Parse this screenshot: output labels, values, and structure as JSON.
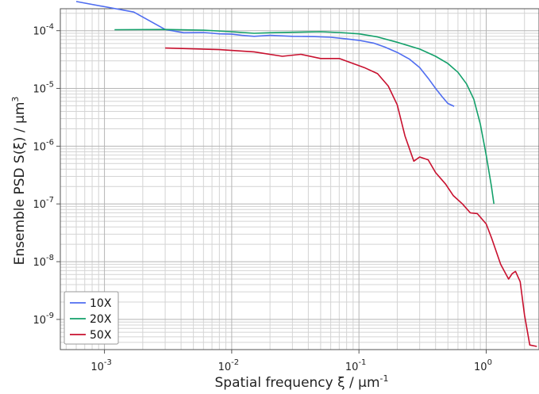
{
  "chart_data": {
    "type": "line",
    "xlabel": "Spatial frequency ξ / μm",
    "xlabel_sup": "-1",
    "ylabel": "Ensemble PSD S(ξ) / μm",
    "ylabel_sup": "3",
    "xscale": "log",
    "yscale": "log",
    "xlim": [
      0.00045,
      2.6
    ],
    "ylim": [
      3e-10,
      0.00024
    ],
    "grid": true,
    "legend_position": "bottom-left",
    "x_ticks": [
      {
        "value": 0.001,
        "base": "10",
        "exp": "-3"
      },
      {
        "value": 0.01,
        "base": "10",
        "exp": "-2"
      },
      {
        "value": 0.1,
        "base": "10",
        "exp": "-1"
      },
      {
        "value": 1,
        "base": "10",
        "exp": "0"
      }
    ],
    "y_ticks": [
      {
        "value": 1e-09,
        "base": "10",
        "exp": "-9"
      },
      {
        "value": 1e-08,
        "base": "10",
        "exp": "-8"
      },
      {
        "value": 1e-07,
        "base": "10",
        "exp": "-7"
      },
      {
        "value": 1e-06,
        "base": "10",
        "exp": "-6"
      },
      {
        "value": 1e-05,
        "base": "10",
        "exp": "-5"
      },
      {
        "value": 0.0001,
        "base": "10",
        "exp": "-4"
      }
    ],
    "series": [
      {
        "name": "10X",
        "color": "#4f6df0",
        "x": [
          0.0006,
          0.0017,
          0.003,
          0.0042,
          0.006,
          0.008,
          0.01,
          0.012,
          0.015,
          0.02,
          0.03,
          0.045,
          0.06,
          0.08,
          0.1,
          0.13,
          0.16,
          0.2,
          0.25,
          0.3,
          0.35,
          0.4,
          0.45,
          0.5,
          0.56
        ],
        "y": [
          0.00032,
          0.00021,
          0.000105,
          9.2e-05,
          9.3e-05,
          8.8e-05,
          8.7e-05,
          8.3e-05,
          8e-05,
          8.3e-05,
          8e-05,
          7.9e-05,
          7.7e-05,
          7.2e-05,
          6.8e-05,
          6.1e-05,
          5.2e-05,
          4.2e-05,
          3.2e-05,
          2.3e-05,
          1.5e-05,
          1e-05,
          7.2e-06,
          5.5e-06,
          4.9e-06
        ]
      },
      {
        "name": "20X",
        "color": "#13a06a",
        "x": [
          0.0012,
          0.003,
          0.006,
          0.01,
          0.015,
          0.02,
          0.03,
          0.05,
          0.07,
          0.1,
          0.14,
          0.2,
          0.3,
          0.4,
          0.5,
          0.6,
          0.7,
          0.8,
          0.9,
          1.0,
          1.1,
          1.15
        ],
        "y": [
          0.000104,
          0.000105,
          0.000102,
          9.6e-05,
          9e-05,
          9.2e-05,
          9.4e-05,
          9.6e-05,
          9.3e-05,
          8.8e-05,
          7.8e-05,
          6.3e-05,
          4.8e-05,
          3.6e-05,
          2.7e-05,
          1.9e-05,
          1.2e-05,
          6.5e-06,
          2.4e-06,
          7e-07,
          2e-07,
          1e-07
        ]
      },
      {
        "name": "50X",
        "color": "#c8102e",
        "x": [
          0.003,
          0.008,
          0.015,
          0.025,
          0.035,
          0.05,
          0.07,
          0.09,
          0.11,
          0.14,
          0.17,
          0.2,
          0.23,
          0.27,
          0.3,
          0.35,
          0.4,
          0.48,
          0.55,
          0.65,
          0.75,
          0.85,
          1.0,
          1.1,
          1.3,
          1.5,
          1.6,
          1.7,
          1.85,
          2.0,
          2.2,
          2.5
        ],
        "y": [
          5e-05,
          4.7e-05,
          4.3e-05,
          3.6e-05,
          3.9e-05,
          3.3e-05,
          3.3e-05,
          2.7e-05,
          2.3e-05,
          1.8e-05,
          1.1e-05,
          5.2e-06,
          1.5e-06,
          5.5e-07,
          6.5e-07,
          5.8e-07,
          3.5e-07,
          2.2e-07,
          1.4e-07,
          1e-07,
          7e-08,
          6.8e-08,
          4.5e-08,
          2.6e-08,
          9e-09,
          5e-09,
          6.2e-09,
          6.8e-09,
          4.5e-09,
          1.2e-09,
          3.6e-10,
          3.4e-10
        ]
      }
    ]
  }
}
